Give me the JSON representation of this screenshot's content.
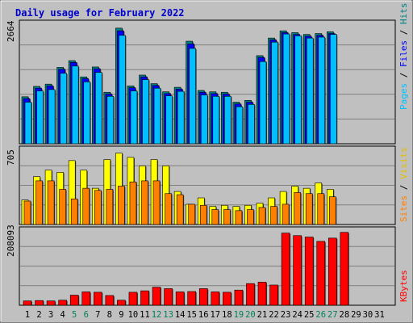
{
  "title": "Daily usage for February 2022",
  "colors": {
    "background": "#c0c0c0",
    "panel": "#c0c0c0",
    "title": "#0000cc",
    "hits": "#008080",
    "files": "#0000ff",
    "pages": "#00bfff",
    "visits": "#ffff00",
    "sites": "#ff8000",
    "kbytes": "#ff0000",
    "weekend_day": "#00805a"
  },
  "chart_data": [
    {
      "type": "bar",
      "panel": "hits-files-pages",
      "ymax_label": "2664",
      "ylim": [
        0,
        2664
      ],
      "legend": [
        "Pages",
        "Files",
        "Hits"
      ],
      "x": [
        1,
        2,
        3,
        4,
        5,
        6,
        7,
        8,
        9,
        10,
        11,
        12,
        13,
        14,
        15,
        16,
        17,
        18,
        19,
        20,
        21,
        22,
        23,
        24,
        25,
        26,
        27,
        28
      ],
      "series": [
        {
          "name": "Hits",
          "values": [
            1040,
            1270,
            1320,
            1690,
            1840,
            1480,
            1700,
            1140,
            2560,
            1280,
            1520,
            1330,
            1150,
            1250,
            2270,
            1180,
            1150,
            1140,
            920,
            960,
            1950,
            2340,
            2500,
            2460,
            2420,
            2440,
            2480,
            0
          ]
        },
        {
          "name": "Files",
          "values": [
            1000,
            1230,
            1280,
            1650,
            1800,
            1440,
            1660,
            1100,
            2500,
            1240,
            1480,
            1290,
            1110,
            1210,
            2210,
            1140,
            1110,
            1100,
            880,
            920,
            1910,
            2300,
            2460,
            2420,
            2380,
            2400,
            2440,
            0
          ]
        },
        {
          "name": "Pages",
          "values": [
            920,
            1170,
            1200,
            1560,
            1720,
            1370,
            1580,
            1050,
            2400,
            1170,
            1420,
            1230,
            1060,
            1160,
            2110,
            1080,
            1050,
            1050,
            820,
            870,
            1820,
            2250,
            2430,
            2390,
            2340,
            2360,
            2420,
            0
          ]
        }
      ]
    },
    {
      "type": "bar",
      "panel": "visits-sites",
      "ymax_label": "705",
      "ylim": [
        0,
        705
      ],
      "legend": [
        "Sites",
        "Visits"
      ],
      "x": [
        1,
        2,
        3,
        4,
        5,
        6,
        7,
        8,
        9,
        10,
        11,
        12,
        13,
        14,
        15,
        16,
        17,
        18,
        19,
        20,
        21,
        22,
        23,
        24,
        25,
        26,
        27,
        28
      ],
      "series": [
        {
          "name": "Visits",
          "values": [
            230,
            450,
            510,
            490,
            600,
            510,
            340,
            610,
            670,
            630,
            550,
            610,
            550,
            310,
            190,
            250,
            170,
            180,
            170,
            180,
            200,
            250,
            310,
            360,
            340,
            390,
            330,
            0
          ]
        },
        {
          "name": "Sites",
          "values": [
            220,
            410,
            410,
            330,
            240,
            340,
            320,
            330,
            360,
            400,
            410,
            410,
            290,
            280,
            190,
            180,
            140,
            140,
            130,
            140,
            160,
            170,
            190,
            300,
            290,
            290,
            260,
            0
          ]
        }
      ]
    },
    {
      "type": "bar",
      "panel": "kbytes",
      "ymax_label": "208093",
      "ylim": [
        0,
        208093
      ],
      "legend": [
        "KBytes"
      ],
      "x": [
        1,
        2,
        3,
        4,
        5,
        6,
        7,
        8,
        9,
        10,
        11,
        12,
        13,
        14,
        15,
        16,
        17,
        18,
        19,
        20,
        21,
        22,
        23,
        24,
        25,
        26,
        27,
        28
      ],
      "series": [
        {
          "name": "KBytes",
          "values": [
            12000,
            13000,
            12000,
            14000,
            28000,
            37000,
            36000,
            27000,
            14000,
            36000,
            40000,
            50000,
            46000,
            37000,
            38000,
            46000,
            37000,
            36000,
            42000,
            60000,
            64000,
            56000,
            200000,
            193000,
            189000,
            177000,
            186000,
            202000
          ]
        }
      ]
    }
  ],
  "x_labels": [
    "1",
    "2",
    "3",
    "4",
    "5",
    "6",
    "7",
    "8",
    "9",
    "10",
    "11",
    "12",
    "13",
    "14",
    "15",
    "16",
    "17",
    "18",
    "19",
    "20",
    "21",
    "22",
    "23",
    "24",
    "25",
    "26",
    "27",
    "28",
    "29",
    "30",
    "31"
  ],
  "weekend_days": [
    5,
    6,
    12,
    13,
    19,
    20,
    26,
    27
  ]
}
